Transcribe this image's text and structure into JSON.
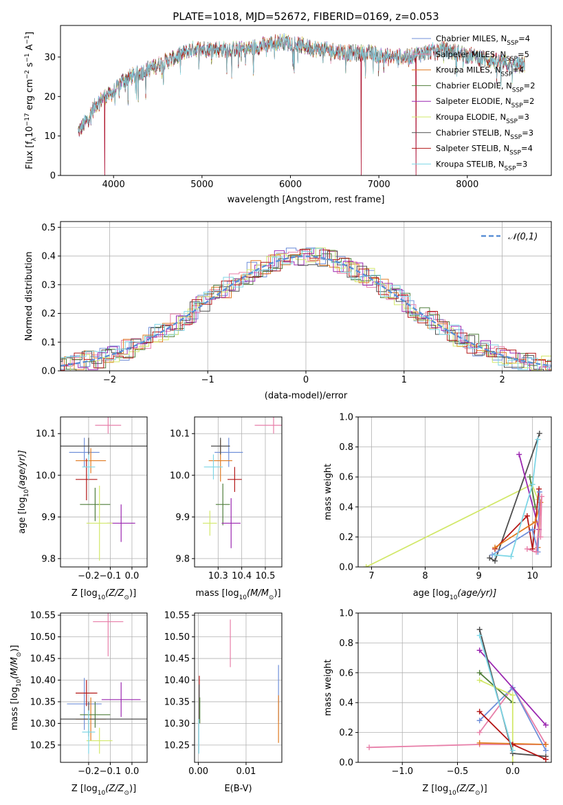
{
  "figure_title": "PLATE=1018, MJD=52672, FIBERID=0169, z=0.053",
  "colors": {
    "chabrier_miles": "#6f8fd9",
    "salpeter_miles": "#e77ea8",
    "kroupa_miles": "#e07a20",
    "chabrier_elodie": "#4f7d3a",
    "salpeter_elodie": "#9b27b0",
    "kroupa_elodie": "#d2e86a",
    "chabrier_stelib": "#4d4d4d",
    "salpeter_stelib": "#b31616",
    "kroupa_stelib": "#7dd6e6",
    "gaussian": "#5a8fd6",
    "grid": "#b0b0b0"
  },
  "chart_data": [
    {
      "type": "line",
      "panel": "spectrum",
      "title": "PLATE=1018, MJD=52672, FIBERID=0169, z=0.053",
      "xlabel": "wavelength [Angstrom, rest frame]",
      "ylabel": "Flux [f",
      "ylabel_parts": [
        "Flux [f",
        "λ",
        "10",
        "−17",
        " erg cm",
        "−2",
        " s",
        "−1",
        " A",
        "−1",
        "]"
      ],
      "xlim": [
        3400,
        8950
      ],
      "ylim": [
        0,
        38
      ],
      "xticks": [
        4000,
        5000,
        6000,
        7000,
        8000
      ],
      "yticks": [
        0,
        10,
        20,
        30
      ],
      "grid": false,
      "legend_position": "top-right",
      "x_range": [
        3600,
        8650
      ],
      "continuum_knots": [
        [
          3600,
          11
        ],
        [
          3700,
          14
        ],
        [
          3800,
          18
        ],
        [
          3900,
          20
        ],
        [
          4000,
          21
        ],
        [
          4100,
          24
        ],
        [
          4300,
          26
        ],
        [
          4500,
          28
        ],
        [
          4700,
          30
        ],
        [
          4900,
          32
        ],
        [
          5100,
          32
        ],
        [
          5300,
          32
        ],
        [
          5500,
          32
        ],
        [
          5700,
          33
        ],
        [
          5900,
          34
        ],
        [
          6100,
          33
        ],
        [
          6300,
          32
        ],
        [
          6500,
          31.5
        ],
        [
          6700,
          31
        ],
        [
          6900,
          31
        ],
        [
          7100,
          30
        ],
        [
          7300,
          30
        ],
        [
          7500,
          31
        ],
        [
          7700,
          32
        ],
        [
          7900,
          31
        ],
        [
          8100,
          30
        ],
        [
          8300,
          29
        ],
        [
          8500,
          28
        ],
        [
          8650,
          28
        ]
      ],
      "spikes": [
        [
          3900,
          0
        ],
        [
          6800,
          0
        ],
        [
          7420,
          0
        ]
      ],
      "series": [
        {
          "name_parts": [
            "Chabrier MILES, N",
            "SSP",
            "=4"
          ],
          "color_key": "chabrier_miles"
        },
        {
          "name_parts": [
            "Salpeter MILES, N",
            "SSP",
            "=5"
          ],
          "color_key": "salpeter_miles"
        },
        {
          "name_parts": [
            "Kroupa MILES, N",
            "SSP",
            "=4"
          ],
          "color_key": "kroupa_miles"
        },
        {
          "name_parts": [
            "Chabrier ELODIE, N",
            "SSP",
            "=2"
          ],
          "color_key": "chabrier_elodie"
        },
        {
          "name_parts": [
            "Salpeter ELODIE, N",
            "SSP",
            "=2"
          ],
          "color_key": "salpeter_elodie"
        },
        {
          "name_parts": [
            "Kroupa ELODIE, N",
            "SSP",
            "=3"
          ],
          "color_key": "kroupa_elodie"
        },
        {
          "name_parts": [
            "Chabrier STELIB, N",
            "SSP",
            "=3"
          ],
          "color_key": "chabrier_stelib"
        },
        {
          "name_parts": [
            "Salpeter STELIB, N",
            "SSP",
            "=4"
          ],
          "color_key": "salpeter_stelib"
        },
        {
          "name_parts": [
            "Kroupa STELIB, N",
            "SSP",
            "=3"
          ],
          "color_key": "kroupa_stelib"
        }
      ]
    },
    {
      "type": "step",
      "panel": "residuals",
      "xlabel": "(data-model)/error",
      "ylabel": "Normed distribution",
      "xlim": [
        -2.5,
        2.5
      ],
      "ylim": [
        0,
        0.52
      ],
      "xticks": [
        -2,
        -1,
        0,
        1,
        2
      ],
      "yticks": [
        0.0,
        0.1,
        0.2,
        0.3,
        0.4,
        0.5
      ],
      "grid": true,
      "legend_position": "top-right",
      "gaussian_label": "𝒩(0,1)",
      "bin_width": 0.1
    },
    {
      "type": "errorbar",
      "panel": "age-vs-Z",
      "xlabel_parts": [
        "Z [log",
        "10",
        "(Z/Z",
        "⊙",
        ")]"
      ],
      "ylabel_parts": [
        "age  [log",
        "10",
        "(age/yr)]"
      ],
      "xlim": [
        -0.33,
        0.07
      ],
      "ylim": [
        9.78,
        10.14
      ],
      "xticks": [
        -0.2,
        -0.1,
        0.0
      ],
      "yticks": [
        9.8,
        9.9,
        10.0,
        10.1
      ],
      "grid": true,
      "points": [
        {
          "color_key": "chabrier_miles",
          "x": -0.22,
          "y": 10.055,
          "xerr": 0.07,
          "yerr": 0.035
        },
        {
          "color_key": "salpeter_miles",
          "x": -0.11,
          "y": 10.12,
          "xerr": 0.06,
          "yerr": 0.02
        },
        {
          "color_key": "kroupa_miles",
          "x": -0.19,
          "y": 10.035,
          "xerr": 0.07,
          "yerr": 0.03
        },
        {
          "color_key": "chabrier_elodie",
          "x": -0.17,
          "y": 9.93,
          "xerr": 0.07,
          "yerr": 0.04
        },
        {
          "color_key": "salpeter_elodie",
          "x": -0.05,
          "y": 9.885,
          "xerr": 0.065,
          "yerr": 0.045
        },
        {
          "color_key": "kroupa_elodie",
          "x": -0.15,
          "y": 9.885,
          "xerr": 0.06,
          "yerr": 0.09
        },
        {
          "color_key": "chabrier_stelib",
          "x": -0.2,
          "y": 10.07,
          "xerr": 0.27,
          "yerr": 0.02
        },
        {
          "color_key": "salpeter_stelib",
          "x": -0.21,
          "y": 9.99,
          "xerr": 0.05,
          "yerr": 0.05
        },
        {
          "color_key": "kroupa_stelib",
          "x": -0.2,
          "y": 10.02,
          "xerr": 0.03,
          "yerr": 0.03
        }
      ]
    },
    {
      "type": "errorbar",
      "panel": "age-vs-mass",
      "xlabel_parts": [
        "mass [log",
        "10",
        "(M/M",
        "⊙",
        ")]"
      ],
      "xlim": [
        10.2,
        10.57
      ],
      "ylim": [
        9.78,
        10.14
      ],
      "xticks": [
        10.3,
        10.4,
        10.5
      ],
      "yticks": [
        9.8,
        9.9,
        10.0,
        10.1
      ],
      "grid": true,
      "points": [
        {
          "color_key": "chabrier_miles",
          "x": 10.345,
          "y": 10.055,
          "xerr": 0.06,
          "yerr": 0.035
        },
        {
          "color_key": "salpeter_miles",
          "x": 10.535,
          "y": 10.12,
          "xerr": 0.08,
          "yerr": 0.02
        },
        {
          "color_key": "kroupa_miles",
          "x": 10.31,
          "y": 10.035,
          "xerr": 0.05,
          "yerr": 0.05
        },
        {
          "color_key": "chabrier_elodie",
          "x": 10.32,
          "y": 9.93,
          "xerr": 0.03,
          "yerr": 0.05
        },
        {
          "color_key": "salpeter_elodie",
          "x": 10.355,
          "y": 9.885,
          "xerr": 0.04,
          "yerr": 0.06
        },
        {
          "color_key": "kroupa_elodie",
          "x": 10.265,
          "y": 9.885,
          "xerr": 0.03,
          "yerr": 0.03
        },
        {
          "color_key": "chabrier_stelib",
          "x": 10.31,
          "y": 10.07,
          "xerr": 0.04,
          "yerr": 0.02
        },
        {
          "color_key": "salpeter_stelib",
          "x": 10.37,
          "y": 9.99,
          "xerr": 0.03,
          "yerr": 0.03
        },
        {
          "color_key": "kroupa_stelib",
          "x": 10.28,
          "y": 10.02,
          "xerr": 0.04,
          "yerr": 0.03
        }
      ]
    },
    {
      "type": "line",
      "panel": "weight-vs-age",
      "xlabel_parts": [
        "age  [log",
        "10",
        "(age/yr)]"
      ],
      "ylabel": "mass weight",
      "xlim": [
        6.75,
        10.35
      ],
      "ylim": [
        0,
        1
      ],
      "xticks": [
        7,
        8,
        9,
        10
      ],
      "yticks": [
        0.0,
        0.2,
        0.4,
        0.6,
        0.8,
        1.0
      ],
      "grid": true,
      "series": [
        {
          "color_key": "kroupa_elodie",
          "points": [
            [
              6.9,
              0.0
            ],
            [
              9.99,
              0.55
            ],
            [
              10.1,
              0.45
            ]
          ]
        },
        {
          "color_key": "chabrier_stelib",
          "points": [
            [
              9.2,
              0.06
            ],
            [
              9.3,
              0.04
            ],
            [
              10.13,
              0.89
            ]
          ]
        },
        {
          "color_key": "salpeter_elodie",
          "points": [
            [
              9.75,
              0.75
            ],
            [
              10.12,
              0.25
            ]
          ]
        },
        {
          "color_key": "chabrier_elodie",
          "points": [
            [
              9.95,
              0.6
            ],
            [
              10.05,
              0.4
            ]
          ]
        },
        {
          "color_key": "salpeter_stelib",
          "points": [
            [
              9.3,
              0.12
            ],
            [
              9.9,
              0.34
            ],
            [
              10.0,
              0.12
            ],
            [
              10.12,
              0.52
            ]
          ]
        },
        {
          "color_key": "kroupa_miles",
          "points": [
            [
              9.3,
              0.13
            ],
            [
              10.05,
              0.3
            ],
            [
              10.15,
              0.43
            ],
            [
              10.1,
              0.13
            ]
          ]
        },
        {
          "color_key": "chabrier_miles",
          "points": [
            [
              9.25,
              0.08
            ],
            [
              10.0,
              0.25
            ],
            [
              10.1,
              0.1
            ],
            [
              10.13,
              0.5
            ]
          ]
        },
        {
          "color_key": "salpeter_miles",
          "points": [
            [
              9.9,
              0.12
            ],
            [
              10.07,
              0.1
            ],
            [
              10.17,
              0.47
            ],
            [
              10.15,
              0.2
            ]
          ]
        },
        {
          "color_key": "kroupa_stelib",
          "points": [
            [
              9.3,
              0.08
            ],
            [
              9.6,
              0.07
            ],
            [
              10.0,
              0.55
            ],
            [
              10.1,
              0.85
            ]
          ]
        }
      ]
    },
    {
      "type": "errorbar",
      "panel": "mass-vs-Z",
      "xlabel_parts": [
        "Z [log",
        "10",
        "(Z/Z",
        "⊙",
        ")]"
      ],
      "ylabel_parts": [
        "mass [log",
        "10",
        "(M/M",
        "⊙",
        ")]"
      ],
      "xlim": [
        -0.33,
        0.07
      ],
      "ylim": [
        10.21,
        10.555
      ],
      "xticks": [
        -0.2,
        -0.1,
        0.0
      ],
      "yticks": [
        10.25,
        10.3,
        10.35,
        10.4,
        10.45,
        10.5,
        10.55
      ],
      "grid": true,
      "points": [
        {
          "color_key": "chabrier_miles",
          "x": -0.22,
          "y": 10.345,
          "xerr": 0.08,
          "yerr": 0.06
        },
        {
          "color_key": "salpeter_miles",
          "x": -0.11,
          "y": 10.535,
          "xerr": 0.07,
          "yerr": 0.08
        },
        {
          "color_key": "kroupa_miles",
          "x": -0.19,
          "y": 10.31,
          "xerr": 0.07,
          "yerr": 0.05
        },
        {
          "color_key": "chabrier_elodie",
          "x": -0.17,
          "y": 10.32,
          "xerr": 0.07,
          "yerr": 0.03
        },
        {
          "color_key": "salpeter_elodie",
          "x": -0.05,
          "y": 10.355,
          "xerr": 0.09,
          "yerr": 0.04
        },
        {
          "color_key": "kroupa_elodie",
          "x": -0.15,
          "y": 10.26,
          "xerr": 0.06,
          "yerr": 0.03
        },
        {
          "color_key": "chabrier_stelib",
          "x": -0.2,
          "y": 10.31,
          "xerr": 0.27,
          "yerr": 0.04
        },
        {
          "color_key": "salpeter_stelib",
          "x": -0.21,
          "y": 10.37,
          "xerr": 0.05,
          "yerr": 0.03
        },
        {
          "color_key": "kroupa_stelib",
          "x": -0.2,
          "y": 10.28,
          "xerr": 0.03,
          "yerr": 0.05
        }
      ]
    },
    {
      "type": "errorbar",
      "panel": "mass-vs-EBV",
      "xlabel": "E(B-V)",
      "xlim": [
        -0.0008,
        0.0175
      ],
      "ylim": [
        10.21,
        10.555
      ],
      "xticks": [
        0.0,
        0.01
      ],
      "yticks": [
        10.25,
        10.3,
        10.35,
        10.4,
        10.45,
        10.5,
        10.55
      ],
      "grid": true,
      "points": [
        {
          "color_key": "chabrier_miles",
          "x": 0.0168,
          "y": 10.37,
          "xerr": 0,
          "yerr": 0.065
        },
        {
          "color_key": "salpeter_miles",
          "x": 0.0067,
          "y": 10.485,
          "xerr": 0,
          "yerr": 0.055
        },
        {
          "color_key": "kroupa_miles",
          "x": 0.0168,
          "y": 10.31,
          "xerr": 0,
          "yerr": 0.055
        },
        {
          "color_key": "salpeter_stelib",
          "x": 0.0002,
          "y": 10.36,
          "xerr": 0,
          "yerr": 0.05
        },
        {
          "color_key": "chabrier_stelib",
          "x": 0.0002,
          "y": 10.35,
          "xerr": 0,
          "yerr": 0.04
        },
        {
          "color_key": "kroupa_stelib",
          "x": 0.0001,
          "y": 10.27,
          "xerr": 0,
          "yerr": 0.04
        },
        {
          "color_key": "chabrier_elodie",
          "x": 0.0003,
          "y": 10.33,
          "xerr": 0,
          "yerr": 0.03
        }
      ]
    },
    {
      "type": "line",
      "panel": "weight-vs-Z",
      "xlabel_parts": [
        "Z [log",
        "10",
        "(Z/Z",
        "⊙",
        ")]"
      ],
      "ylabel": "mass weight",
      "xlim": [
        -1.4,
        0.35
      ],
      "ylim": [
        0,
        1
      ],
      "xticks": [
        -1.0,
        -0.5,
        0.0
      ],
      "yticks": [
        0.0,
        0.2,
        0.4,
        0.6,
        0.8,
        1.0
      ],
      "grid": true,
      "series": [
        {
          "color_key": "salpeter_miles",
          "points": [
            [
              -1.3,
              0.1
            ],
            [
              -0.3,
              0.12
            ],
            [
              0.3,
              0.12
            ],
            [
              0.0,
              0.5
            ],
            [
              -0.3,
              0.2
            ]
          ]
        },
        {
          "color_key": "kroupa_miles",
          "points": [
            [
              -0.3,
              0.13
            ],
            [
              0.3,
              0.12
            ]
          ]
        },
        {
          "color_key": "chabrier_miles",
          "points": [
            [
              -0.3,
              0.28
            ],
            [
              0.0,
              0.5
            ],
            [
              0.3,
              0.08
            ]
          ]
        },
        {
          "color_key": "salpeter_elodie",
          "points": [
            [
              -0.3,
              0.75
            ],
            [
              0.3,
              0.25
            ]
          ]
        },
        {
          "color_key": "chabrier_elodie",
          "points": [
            [
              -0.3,
              0.6
            ],
            [
              0.0,
              0.4
            ]
          ]
        },
        {
          "color_key": "kroupa_elodie",
          "points": [
            [
              -0.3,
              0.55
            ],
            [
              0.0,
              0.45
            ],
            [
              0.0,
              0.0
            ]
          ]
        },
        {
          "color_key": "chabrier_stelib",
          "points": [
            [
              -0.3,
              0.89
            ],
            [
              0.0,
              0.06
            ],
            [
              0.3,
              0.04
            ]
          ]
        },
        {
          "color_key": "salpeter_stelib",
          "points": [
            [
              -0.3,
              0.34
            ],
            [
              0.0,
              0.12
            ],
            [
              0.3,
              0.02
            ]
          ]
        },
        {
          "color_key": "kroupa_stelib",
          "points": [
            [
              -0.3,
              0.85
            ],
            [
              0.0,
              0.08
            ]
          ]
        }
      ]
    }
  ]
}
